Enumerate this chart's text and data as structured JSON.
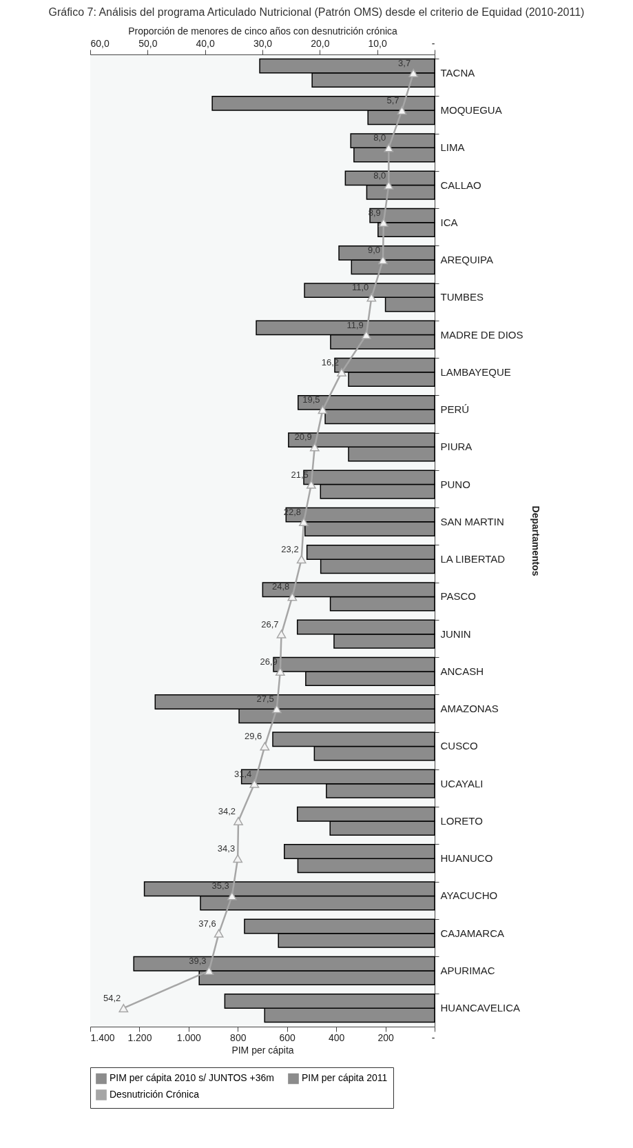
{
  "chart_data": {
    "type": "bar",
    "orientation": "horizontal",
    "title": "Gráfico 7: Análisis del programa Articulado Nutricional  (Patrón OMS) desde el criterio de Equidad  (2010-2011)",
    "xlabel": "PIM per cápita",
    "ylabel": "Departamentos",
    "x2label": "Proporción de menores de cinco años con desnutrición crónica",
    "categories": [
      "TACNA",
      "MOQUEGUA",
      "LIMA",
      "CALLAO",
      "ICA",
      "AREQUIPA",
      "TUMBES",
      "MADRE DE DIOS",
      "LAMBAYEQUE",
      "PERÚ",
      "PIURA",
      "PUNO",
      "SAN MARTIN",
      "LA LIBERTAD",
      "PASCO",
      "JUNIN",
      "ANCASH",
      "AMAZONAS",
      "CUSCO",
      "UCAYALI",
      "LORETO",
      "HUANUCO",
      "AYACUCHO",
      "CAJAMARCA",
      "APURIMAC",
      "HUANCAVELICA"
    ],
    "series": [
      {
        "name": "PIM per cápita 2010 s/ JUNTOS +36m",
        "color": "#8c8c8c",
        "values": [
          498,
          271,
          328,
          276,
          230,
          338,
          200,
          423,
          350,
          445,
          350,
          464,
          527,
          463,
          424,
          409,
          524,
          795,
          489,
          440,
          425,
          556,
          952,
          635,
          957,
          691
        ]
      },
      {
        "name": "PIM per cápita 2011",
        "color": "#8c8c8c",
        "values": [
          711,
          904,
          341,
          363,
          263,
          389,
          529,
          725,
          406,
          555,
          594,
          532,
          604,
          519,
          699,
          558,
          655,
          1136,
          658,
          785,
          558,
          611,
          1180,
          773,
          1223,
          853
        ]
      },
      {
        "name": "Desnutrición Crónica",
        "type": "line",
        "axis": "x2",
        "color": "#a6a6a6",
        "marker": "triangle",
        "values": [
          3.7,
          5.7,
          8.0,
          8.0,
          8.9,
          9.0,
          11.0,
          11.9,
          16.2,
          19.5,
          20.9,
          21.5,
          22.8,
          23.2,
          24.8,
          26.7,
          26.9,
          27.5,
          29.6,
          31.4,
          34.2,
          34.3,
          35.3,
          37.6,
          39.3,
          54.2
        ],
        "value_labels": [
          "3,7",
          "5,7",
          "8,0",
          "8,0",
          "8,9",
          "9,0",
          "11,0",
          "11,9",
          "16,2",
          "19,5",
          "20,9",
          "21,5",
          "22,8",
          "23,2",
          "24,8",
          "26,7",
          "26,9",
          "27,5",
          "29,6",
          "31,4",
          "34,2",
          "34,3",
          "35,3",
          "37,6",
          "39,3",
          "54,2"
        ]
      }
    ],
    "xlim": [
      1400,
      0
    ],
    "xticks": [
      {
        "value": 1400,
        "label": "1.400"
      },
      {
        "value": 1200,
        "label": "1.200"
      },
      {
        "value": 1000,
        "label": "1.000"
      },
      800,
      600,
      400,
      200,
      {
        "value": 0,
        "label": "-"
      }
    ],
    "x2lim": [
      60,
      0
    ],
    "x2ticks": [
      {
        "value": 60,
        "label": "60,0"
      },
      {
        "value": 50,
        "label": "50,0"
      },
      {
        "value": 40,
        "label": "40,0"
      },
      {
        "value": 30,
        "label": "30,0"
      },
      {
        "value": 20,
        "label": "20,0"
      },
      {
        "value": 10,
        "label": "10,0"
      },
      {
        "value": 0,
        "label": "-"
      }
    ],
    "legend": "bottom"
  }
}
